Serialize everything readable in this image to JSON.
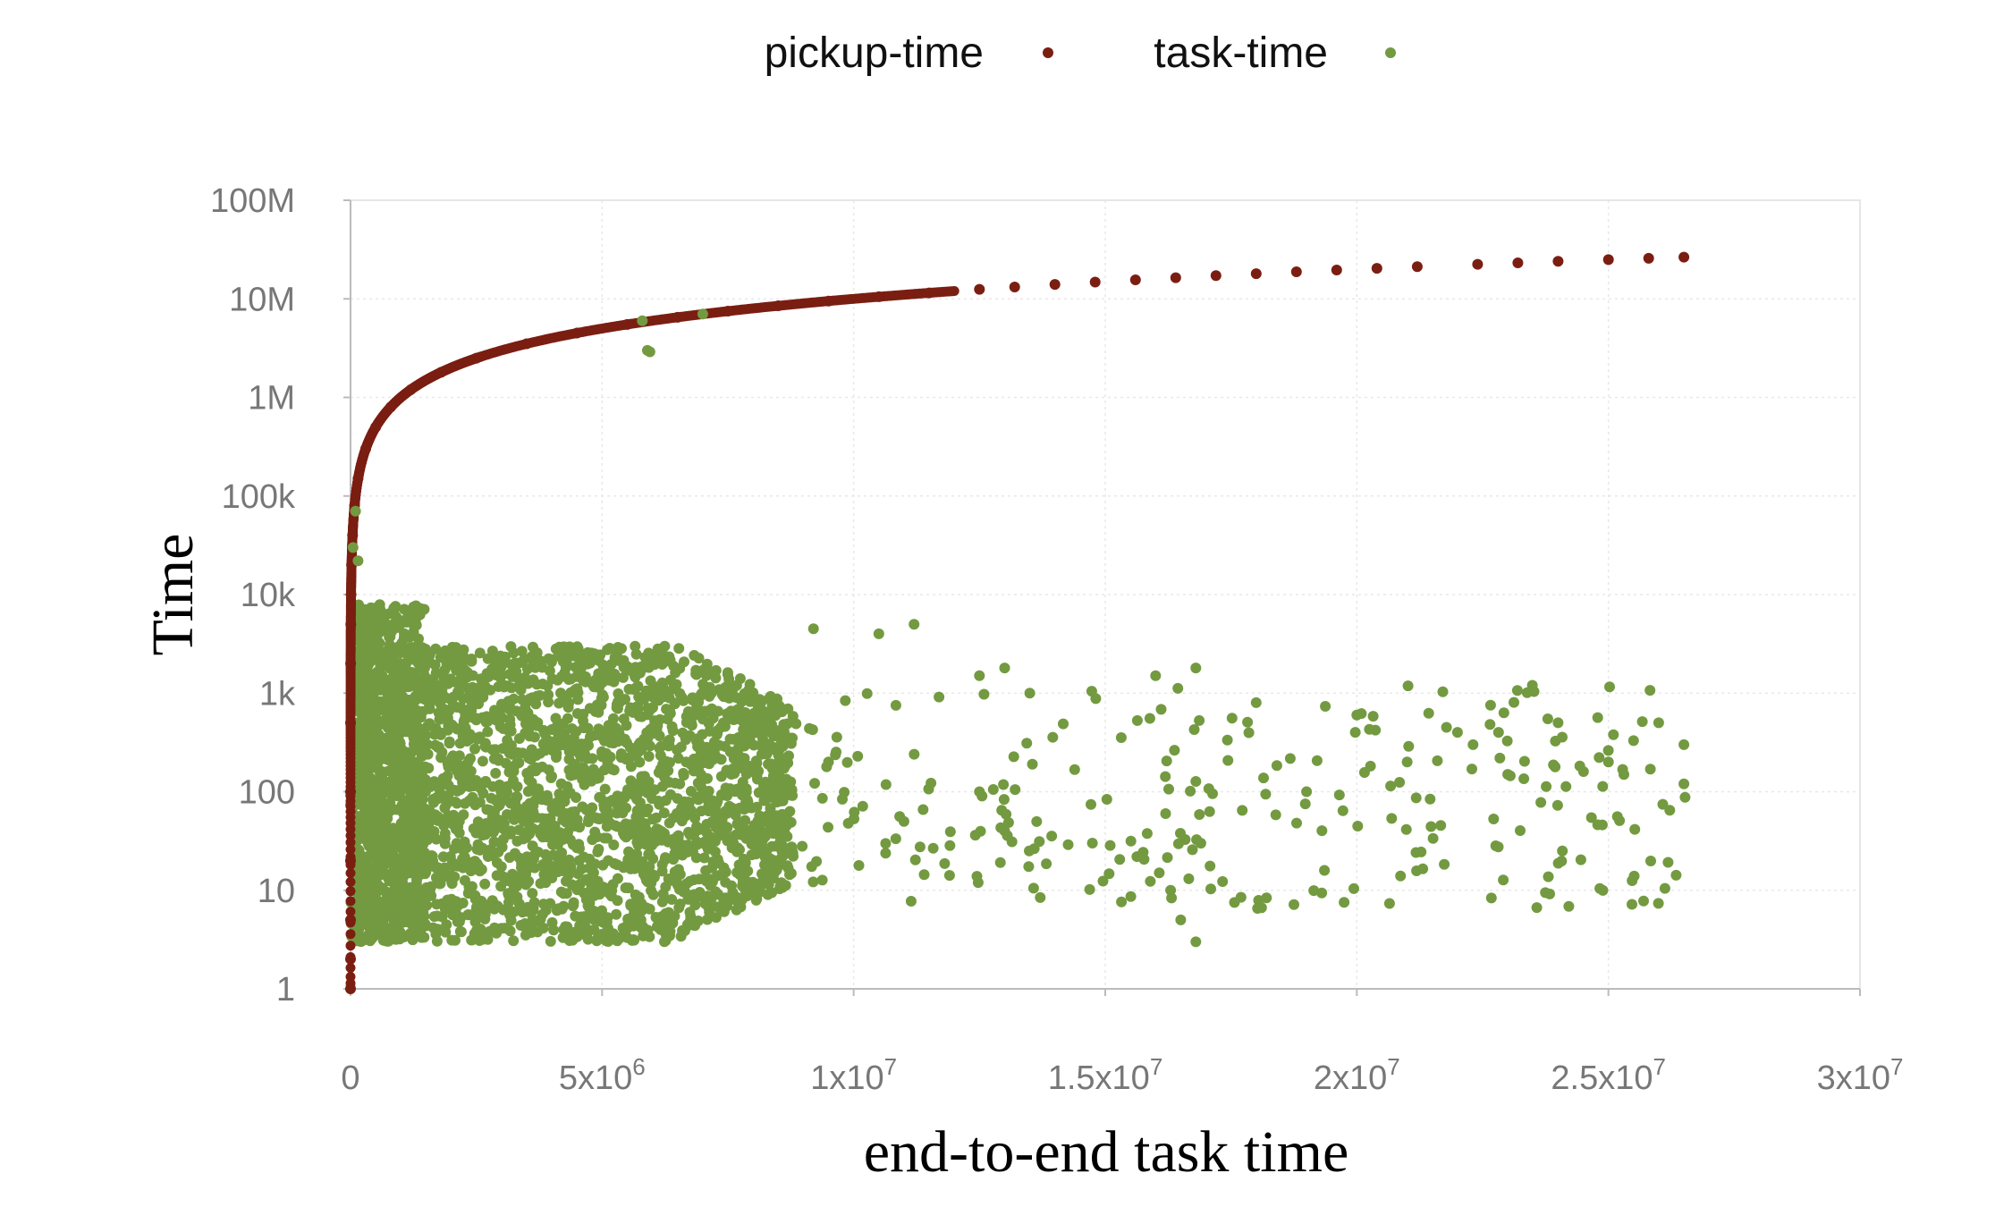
{
  "chart_data": {
    "type": "scatter",
    "xlabel": "end-to-end task time",
    "ylabel": "Time",
    "y_scale": "log",
    "xlim": [
      0,
      30000000
    ],
    "ylim": [
      1,
      100000000
    ],
    "grid": true,
    "legend_position": "top-center",
    "x_ticks": [
      {
        "value": 0,
        "base": "0",
        "exp": ""
      },
      {
        "value": 5000000,
        "base": "5x10",
        "exp": "6"
      },
      {
        "value": 10000000,
        "base": "1x10",
        "exp": "7"
      },
      {
        "value": 15000000,
        "base": "1.5x10",
        "exp": "7"
      },
      {
        "value": 20000000,
        "base": "2x10",
        "exp": "7"
      },
      {
        "value": 25000000,
        "base": "2.5x10",
        "exp": "7"
      },
      {
        "value": 30000000,
        "base": "3x10",
        "exp": "7"
      }
    ],
    "y_ticks": [
      {
        "value": 1,
        "label": "1"
      },
      {
        "value": 10,
        "label": "10"
      },
      {
        "value": 100,
        "label": "100"
      },
      {
        "value": 1000,
        "label": "1k"
      },
      {
        "value": 10000,
        "label": "10k"
      },
      {
        "value": 100000,
        "label": "100k"
      },
      {
        "value": 1000000,
        "label": "1M"
      },
      {
        "value": 10000000,
        "label": "10M"
      },
      {
        "value": 100000000,
        "label": "100M"
      }
    ],
    "series": [
      {
        "name": "pickup-time",
        "color": "#7b1e12",
        "description_of_pattern": "y approximately equals x",
        "points": [
          [
            1,
            1
          ],
          [
            2,
            2
          ],
          [
            5,
            5
          ],
          [
            20,
            20
          ],
          [
            100,
            100
          ],
          [
            500,
            500
          ],
          [
            2000,
            2000
          ],
          [
            5000,
            5000
          ],
          [
            10000,
            10000
          ],
          [
            20000,
            20000
          ],
          [
            40000,
            40000
          ],
          [
            80000,
            80000
          ],
          [
            150000,
            150000
          ],
          [
            300000,
            300000
          ],
          [
            500000,
            500000
          ],
          [
            800000,
            800000
          ],
          [
            1200000,
            1200000
          ],
          [
            1800000,
            1800000
          ],
          [
            2500000,
            2500000
          ],
          [
            3500000,
            3500000
          ],
          [
            4500000,
            4500000
          ],
          [
            5500000,
            5500000
          ],
          [
            6500000,
            6500000
          ],
          [
            7500000,
            7500000
          ],
          [
            8500000,
            8500000
          ],
          [
            9500000,
            9500000
          ],
          [
            10500000,
            10500000
          ],
          [
            11500000,
            11500000
          ],
          [
            12500000,
            12500000
          ],
          [
            13200000,
            13200000
          ],
          [
            14000000,
            14000000
          ],
          [
            14800000,
            14800000
          ],
          [
            15600000,
            15600000
          ],
          [
            16400000,
            16400000
          ],
          [
            17200000,
            17200000
          ],
          [
            18000000,
            18000000
          ],
          [
            18800000,
            18800000
          ],
          [
            19600000,
            19600000
          ],
          [
            20400000,
            20400000
          ],
          [
            21200000,
            21200000
          ],
          [
            22400000,
            22400000
          ],
          [
            23200000,
            23200000
          ],
          [
            24000000,
            24000000
          ],
          [
            25000000,
            25000000
          ],
          [
            25800000,
            25800000
          ],
          [
            26500000,
            26500000
          ]
        ]
      },
      {
        "name": "task-time",
        "color": "#739a40",
        "points": [
          [
            50000,
            30000
          ],
          [
            100000,
            70000
          ],
          [
            150000,
            22000
          ],
          [
            5800000,
            6000000
          ],
          [
            7000000,
            7000000
          ],
          [
            5900000,
            3000000
          ],
          [
            5950000,
            2900000
          ],
          [
            9200000,
            4500
          ],
          [
            10500000,
            4000
          ],
          [
            11200000,
            5000
          ],
          [
            12500000,
            1500
          ],
          [
            13000000,
            1800
          ],
          [
            16000000,
            1500
          ],
          [
            16800000,
            1800
          ],
          [
            13500000,
            1000
          ],
          [
            18000000,
            800
          ],
          [
            20000000,
            600
          ],
          [
            22000000,
            400
          ],
          [
            24000000,
            500
          ],
          [
            26000000,
            500
          ],
          [
            26500000,
            300
          ],
          [
            26500000,
            120
          ],
          [
            16200000,
            60
          ],
          [
            16900000,
            30
          ],
          [
            16300000,
            10
          ],
          [
            16500000,
            5
          ],
          [
            16800000,
            3
          ],
          [
            9500000,
            200
          ],
          [
            12500000,
            100
          ],
          [
            13000000,
            40
          ],
          [
            11000000,
            50
          ],
          [
            21000000,
            200
          ],
          [
            19000000,
            100
          ],
          [
            23000000,
            150
          ],
          [
            25000000,
            200
          ]
        ],
        "dense_regions": [
          {
            "x_range": [
              0,
              8800000
            ],
            "y_range": [
              3,
              3000
            ]
          },
          {
            "x_range": [
              100000,
              1500000
            ],
            "y_range": [
              3,
              8000
            ]
          }
        ]
      }
    ]
  }
}
